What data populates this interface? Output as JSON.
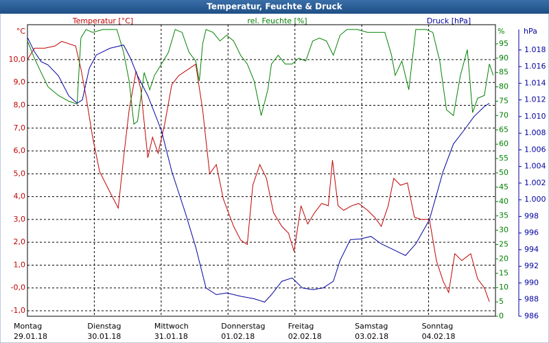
{
  "chart_data": {
    "type": "line",
    "title": "Temperatur, Feuchte & Druck",
    "xlim": [
      0,
      168
    ],
    "xticks": [
      {
        "value": 0,
        "label": "Montag"
      },
      {
        "value": 24,
        "label": "Dienstag"
      },
      {
        "value": 48,
        "label": "Mittwoch"
      },
      {
        "value": 72,
        "label": "Donnerstag"
      },
      {
        "value": 96,
        "label": "Freitag"
      },
      {
        "value": 120,
        "label": "Samstag"
      },
      {
        "value": 144,
        "label": "Sonntag"
      }
    ],
    "xtick_dates": [
      "29.01.18",
      "30.01.18",
      "31.01.18",
      "01.02.18",
      "02.02.18",
      "03.02.18",
      "04.02.18"
    ],
    "ylabel": "°C",
    "y2label": "%",
    "y3label": "hPa",
    "ylim": [
      -1.24,
      11.32
    ],
    "yticks": [
      {
        "value": -1,
        "label": "-1,0"
      },
      {
        "value": 0,
        "label": "-0,0"
      },
      {
        "value": 1,
        "label": "1,0"
      },
      {
        "value": 2,
        "label": "2,0"
      },
      {
        "value": 3,
        "label": "3,0"
      },
      {
        "value": 4,
        "label": "4,0"
      },
      {
        "value": 5,
        "label": "5,0"
      },
      {
        "value": 6,
        "label": "6,0"
      },
      {
        "value": 7,
        "label": "7,0"
      },
      {
        "value": 8,
        "label": "8,0"
      },
      {
        "value": 9,
        "label": "9,0"
      },
      {
        "value": 10,
        "label": "10,0"
      }
    ],
    "y2lim": [
      0,
      100
    ],
    "y2ticks": [
      0,
      5,
      10,
      15,
      20,
      25,
      30,
      35,
      40,
      45,
      50,
      55,
      60,
      65,
      70,
      75,
      80,
      85,
      90,
      95
    ],
    "y3lim": [
      986,
      1020.46
    ],
    "y3ticks": [
      986,
      988,
      990,
      992,
      994,
      996,
      998,
      {
        "value": 1000,
        "label": "1.000"
      },
      {
        "value": 1002,
        "label": "1.002"
      },
      {
        "value": 1004,
        "label": "1.004"
      },
      {
        "value": 1006,
        "label": "1.006"
      },
      {
        "value": 1008,
        "label": "1.008"
      },
      {
        "value": 1010,
        "label": "1.010"
      },
      {
        "value": 1012,
        "label": "1.012"
      },
      {
        "value": 1014,
        "label": "1.014"
      },
      {
        "value": 1016,
        "label": "1.016"
      },
      {
        "value": 1018,
        "label": "1.018"
      }
    ],
    "grid": true,
    "series": [
      {
        "name": "Temperatur [°C]",
        "color": "#c00000",
        "axis": "y",
        "x": [
          0,
          2.5,
          6.2,
          9.9,
          12.3,
          17.3,
          19.2,
          21.0,
          23.4,
          25.9,
          29.6,
          32.6,
          34.5,
          36.5,
          39.0,
          40.7,
          43.2,
          44.9,
          46.9,
          49.3,
          51.8,
          54.3,
          58.0,
          60.4,
          62.9,
          65.4,
          67.8,
          70.3,
          74.0,
          76.5,
          78.9,
          80.9,
          83.4,
          85.8,
          88.3,
          91.3,
          93.7,
          95.7,
          98.2,
          100.6,
          103.1,
          105.6,
          108.0,
          109.5,
          111.5,
          113.5,
          116.4,
          118.9,
          122.1,
          124.6,
          127.0,
          129.5,
          131.5,
          133.9,
          136.4,
          138.9,
          141.3,
          144.3,
          146.8,
          149.2,
          151.2,
          153.4,
          155.9,
          159.1,
          161.6,
          164.0,
          165.8
        ],
        "values": [
          10.0,
          10.5,
          10.5,
          10.6,
          10.8,
          10.6,
          9.6,
          8.4,
          6.6,
          5.1,
          4.2,
          3.5,
          5.7,
          7.8,
          9.5,
          8.7,
          5.7,
          6.6,
          5.9,
          7.2,
          8.9,
          9.3,
          9.6,
          9.8,
          7.8,
          5.0,
          5.4,
          3.9,
          2.7,
          2.1,
          1.9,
          4.5,
          5.4,
          4.8,
          3.3,
          2.7,
          2.4,
          1.6,
          3.6,
          2.8,
          3.3,
          3.7,
          3.6,
          5.6,
          3.6,
          3.4,
          3.6,
          3.7,
          3.4,
          3.1,
          2.7,
          3.6,
          4.8,
          4.5,
          4.6,
          3.1,
          3.0,
          3.0,
          1.2,
          0.3,
          -0.2,
          1.5,
          1.2,
          1.5,
          0.4,
          0.0,
          -0.6
        ]
      },
      {
        "name": "rel. Feuchte [%]",
        "color": "#008000",
        "axis": "y2",
        "x": [
          0,
          2.5,
          4.9,
          7.4,
          11.1,
          14.8,
          17.8,
          19.2,
          21.0,
          23.4,
          27.1,
          32.1,
          34.5,
          36.5,
          38.2,
          39.5,
          41.9,
          43.9,
          45.6,
          48.1,
          50.6,
          53.0,
          55.5,
          58.0,
          60.4,
          61.7,
          62.9,
          64.1,
          66.6,
          69.1,
          71.5,
          74.0,
          76.5,
          78.9,
          81.4,
          83.9,
          86.3,
          87.6,
          90.0,
          92.5,
          95.0,
          97.4,
          99.9,
          102.4,
          104.8,
          107.3,
          109.8,
          112.2,
          114.7,
          118.4,
          122.1,
          124.6,
          128.3,
          130.7,
          132.0,
          134.4,
          136.9,
          139.4,
          143.1,
          145.5,
          148.0,
          150.4,
          152.9,
          155.4,
          157.9,
          159.8,
          161.6,
          164.0,
          165.8,
          167.2
        ],
        "values": [
          96,
          90,
          85,
          80,
          77,
          75,
          74,
          97,
          100,
          99,
          100,
          100,
          92,
          82,
          67,
          68,
          85,
          79,
          84,
          88,
          92,
          100,
          99,
          92,
          89,
          82,
          95,
          100,
          99,
          96,
          98,
          96,
          91,
          88,
          82,
          70,
          79,
          88,
          91,
          88,
          88,
          90,
          89,
          96,
          97,
          96,
          91,
          98,
          100,
          100,
          99,
          99,
          99,
          91,
          84,
          89,
          79,
          100,
          100,
          99,
          89,
          72,
          70,
          84,
          93,
          71,
          76,
          77,
          88,
          84
        ]
      },
      {
        "name": "Druck [hPa]",
        "color": "#0000a0",
        "axis": "y3",
        "x": [
          0,
          2.5,
          4.9,
          7.4,
          11.1,
          14.8,
          17.8,
          19.7,
          22.2,
          24.7,
          29.6,
          34.5,
          37.0,
          39.5,
          43.2,
          48.1,
          51.8,
          56.7,
          60.4,
          64.1,
          67.8,
          71.5,
          76.5,
          81.4,
          85.1,
          87.6,
          91.3,
          95.0,
          98.7,
          102.4,
          106.1,
          109.8,
          112.2,
          115.9,
          119.6,
          123.3,
          127.0,
          132.0,
          135.7,
          139.4,
          144.3,
          149.2,
          152.9,
          156.6,
          160.3,
          164.0,
          165.8
        ],
        "values": [
          1019.5,
          1017.8,
          1016.6,
          1016.2,
          1014.9,
          1012.5,
          1011.6,
          1012.0,
          1015.8,
          1017.4,
          1018.2,
          1018.6,
          1017.0,
          1014.9,
          1012.5,
          1008.3,
          1003.4,
          998.4,
          994.3,
          989.4,
          988.6,
          988.8,
          988.4,
          988.1,
          987.7,
          988.6,
          990.2,
          990.6,
          989.4,
          989.2,
          989.4,
          990.2,
          992.7,
          995.2,
          995.3,
          995.6,
          994.7,
          993.9,
          993.3,
          994.7,
          997.6,
          1003.4,
          1006.7,
          1008.3,
          1010.0,
          1011.2,
          1011.6
        ]
      }
    ]
  }
}
